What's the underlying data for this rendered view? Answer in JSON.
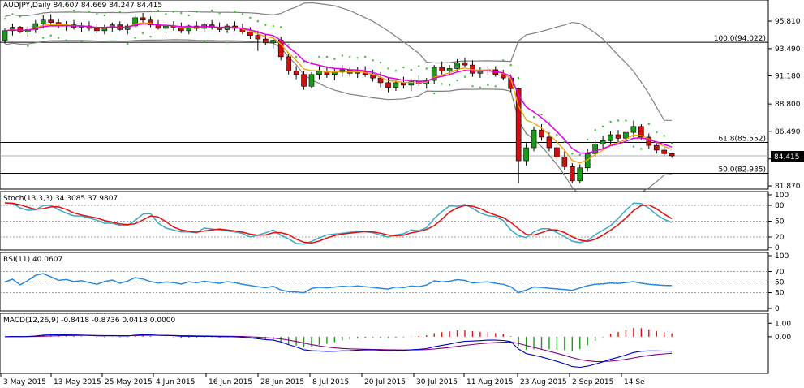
{
  "main": {
    "header": "AUDJPY,Daily  84.607 84.669 84.247 84.415",
    "last_price": "84.415",
    "y_ticks": [
      "95.810",
      "93.490",
      "91.180",
      "88.800",
      "86.490",
      "84.160",
      "81.870"
    ],
    "fib_levels": [
      {
        "label": "100.0(94.022)",
        "value": 94.022
      },
      {
        "label": "61.8(85.552)",
        "value": 85.552
      },
      {
        "label": "50.0(82.935)",
        "value": 82.935
      }
    ]
  },
  "stoch": {
    "header": "Stoch(13,3,3) 34.3085 37.9807",
    "y_ticks": [
      "100",
      "80",
      "50",
      "20",
      "0"
    ]
  },
  "rsi": {
    "header": "RSI(11) 40.0607",
    "y_ticks": [
      "100",
      "70",
      "50",
      "30",
      "0"
    ]
  },
  "macd": {
    "header": "MACD(12,26,9) -0.8418 -0.8736 0.0413 0.0000",
    "y_ticks": [
      "1.00",
      "0.00"
    ]
  },
  "x_labels": [
    "3 May 2015",
    "13 May 2015",
    "25 May 2015",
    "4 Jun 2015",
    "16 Jun 2015",
    "28 Jun 2015",
    "8 Jul 2015",
    "20 Jul 2015",
    "30 Jul 2015",
    "11 Aug 2015",
    "23 Aug 2015",
    "2 Sep 2015",
    "14 Se"
  ],
  "colors": {
    "bull": "#1a9a1a",
    "bear": "#d01010",
    "ema_fast": "#f0a000",
    "ema_slow": "#e000e0",
    "bollinger": "#808080",
    "sar": "#3cb83c",
    "stoch_k": "#3aa8c8",
    "stoch_d": "#e01010",
    "rsi": "#2a8ad8",
    "macd_signal": "#800080",
    "macd_main": "#0000c0",
    "hist_pos": "#e01010",
    "hist_neg": "#1a9a1a"
  },
  "chart_data": {
    "type": "candlestick",
    "symbol": "AUDJPY",
    "timeframe": "Daily",
    "ylim": [
      81.6,
      97.6
    ],
    "candles": [
      [
        94.2,
        95.2,
        93.9,
        95.0
      ],
      [
        95.0,
        95.6,
        94.6,
        95.3
      ],
      [
        95.3,
        95.4,
        94.8,
        94.9
      ],
      [
        94.9,
        95.4,
        94.5,
        95.1
      ],
      [
        95.1,
        95.9,
        94.8,
        95.6
      ],
      [
        95.6,
        96.3,
        95.2,
        95.9
      ],
      [
        95.9,
        96.4,
        95.4,
        95.7
      ],
      [
        95.7,
        96.0,
        95.2,
        95.4
      ],
      [
        95.4,
        95.8,
        95.0,
        95.5
      ],
      [
        95.5,
        95.9,
        95.1,
        95.3
      ],
      [
        95.3,
        95.7,
        94.9,
        95.4
      ],
      [
        95.4,
        95.8,
        95.0,
        95.2
      ],
      [
        95.2,
        95.6,
        94.8,
        95.0
      ],
      [
        95.0,
        95.5,
        94.7,
        95.3
      ],
      [
        95.3,
        95.7,
        94.9,
        95.5
      ],
      [
        95.5,
        95.8,
        95.0,
        95.1
      ],
      [
        95.1,
        95.6,
        94.7,
        95.4
      ],
      [
        95.4,
        96.4,
        95.2,
        96.1
      ],
      [
        96.1,
        96.5,
        95.6,
        95.9
      ],
      [
        95.9,
        96.2,
        95.3,
        95.5
      ],
      [
        95.5,
        95.9,
        95.1,
        95.2
      ],
      [
        95.2,
        95.6,
        94.8,
        95.4
      ],
      [
        95.4,
        95.8,
        95.0,
        95.3
      ],
      [
        95.3,
        95.7,
        94.8,
        95.0
      ],
      [
        95.0,
        95.5,
        94.7,
        95.4
      ],
      [
        95.4,
        95.8,
        95.0,
        95.2
      ],
      [
        95.2,
        95.7,
        94.9,
        95.5
      ],
      [
        95.5,
        95.9,
        95.1,
        95.3
      ],
      [
        95.3,
        95.7,
        94.9,
        95.1
      ],
      [
        95.1,
        95.6,
        94.8,
        95.4
      ],
      [
        95.4,
        95.8,
        95.0,
        95.2
      ],
      [
        95.2,
        95.6,
        94.7,
        94.9
      ],
      [
        94.9,
        95.3,
        94.3,
        94.6
      ],
      [
        94.6,
        95.0,
        93.3,
        94.3
      ],
      [
        94.3,
        94.7,
        93.8,
        94.0
      ],
      [
        94.0,
        94.6,
        93.5,
        94.2
      ],
      [
        94.2,
        94.5,
        92.5,
        92.8
      ],
      [
        92.8,
        93.0,
        91.3,
        91.6
      ],
      [
        91.6,
        92.0,
        90.9,
        91.3
      ],
      [
        91.3,
        91.6,
        90.0,
        90.3
      ],
      [
        90.3,
        91.5,
        90.1,
        91.3
      ],
      [
        91.3,
        92.0,
        90.9,
        91.6
      ],
      [
        91.6,
        92.0,
        91.0,
        91.3
      ],
      [
        91.3,
        91.8,
        90.8,
        91.5
      ],
      [
        91.5,
        92.1,
        91.1,
        91.7
      ],
      [
        91.7,
        92.0,
        91.1,
        91.4
      ],
      [
        91.4,
        91.9,
        91.0,
        91.6
      ],
      [
        91.6,
        92.0,
        91.1,
        91.3
      ],
      [
        91.3,
        91.7,
        90.7,
        91.0
      ],
      [
        91.0,
        91.5,
        90.2,
        90.6
      ],
      [
        90.6,
        91.0,
        89.8,
        90.2
      ],
      [
        90.2,
        90.8,
        89.9,
        90.6
      ],
      [
        90.6,
        91.1,
        90.1,
        90.4
      ],
      [
        90.4,
        90.9,
        89.9,
        90.7
      ],
      [
        90.7,
        91.2,
        90.3,
        90.5
      ],
      [
        90.5,
        91.0,
        90.1,
        90.8
      ],
      [
        90.8,
        92.1,
        90.5,
        91.9
      ],
      [
        91.9,
        92.4,
        91.3,
        91.6
      ],
      [
        91.6,
        92.1,
        91.2,
        91.8
      ],
      [
        91.8,
        92.6,
        91.6,
        92.3
      ],
      [
        92.3,
        92.7,
        91.9,
        92.1
      ],
      [
        92.1,
        92.5,
        91.1,
        91.4
      ],
      [
        91.4,
        91.9,
        91.0,
        91.6
      ],
      [
        91.6,
        92.0,
        91.2,
        91.7
      ],
      [
        91.7,
        92.0,
        91.1,
        91.3
      ],
      [
        91.3,
        91.7,
        90.8,
        91.0
      ],
      [
        91.0,
        91.3,
        89.8,
        90.1
      ],
      [
        90.1,
        90.2,
        82.1,
        84.0
      ],
      [
        84.0,
        85.5,
        83.6,
        85.1
      ],
      [
        85.1,
        86.9,
        84.8,
        86.6
      ],
      [
        86.6,
        87.1,
        85.7,
        86.0
      ],
      [
        86.0,
        86.4,
        84.8,
        85.1
      ],
      [
        85.1,
        85.4,
        84.0,
        84.3
      ],
      [
        84.3,
        84.8,
        83.2,
        83.5
      ],
      [
        83.5,
        83.8,
        82.1,
        82.3
      ],
      [
        82.3,
        83.7,
        82.1,
        83.4
      ],
      [
        83.4,
        85.0,
        83.1,
        84.6
      ],
      [
        84.6,
        85.8,
        84.3,
        85.4
      ],
      [
        85.4,
        86.1,
        85.0,
        85.7
      ],
      [
        85.7,
        86.5,
        85.3,
        86.2
      ],
      [
        86.2,
        86.6,
        85.5,
        85.9
      ],
      [
        85.9,
        86.6,
        85.6,
        86.4
      ],
      [
        86.4,
        87.4,
        86.0,
        86.9
      ],
      [
        86.9,
        87.1,
        85.8,
        86.0
      ],
      [
        86.0,
        86.3,
        85.0,
        85.3
      ],
      [
        85.3,
        85.6,
        84.6,
        84.9
      ],
      [
        84.9,
        85.3,
        84.4,
        84.6
      ],
      [
        84.607,
        84.669,
        84.247,
        84.415
      ]
    ],
    "stochastic": {
      "k": 34.3085,
      "d": 37.9807,
      "levels": [
        80,
        50,
        20
      ]
    },
    "rsi": {
      "value": 40.0607,
      "levels": [
        70,
        50,
        30
      ]
    },
    "macd": {
      "main": -0.8418,
      "signal": -0.8736,
      "histogram": 0.0413
    }
  }
}
